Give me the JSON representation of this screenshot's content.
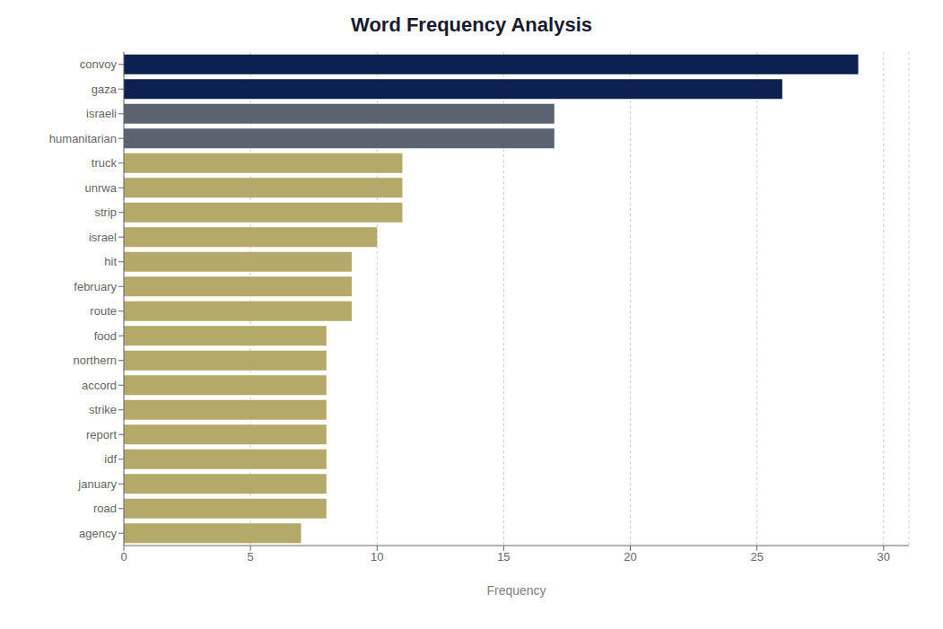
{
  "chart_data": {
    "type": "bar",
    "orientation": "horizontal",
    "title": "Word Frequency Analysis",
    "xlabel": "Frequency",
    "categories": [
      "convoy",
      "gaza",
      "israeli",
      "humanitarian",
      "truck",
      "unrwa",
      "strip",
      "israel",
      "hit",
      "february",
      "route",
      "food",
      "northern",
      "accord",
      "strike",
      "report",
      "idf",
      "january",
      "road",
      "agency"
    ],
    "values": [
      29,
      26,
      17,
      17,
      11,
      11,
      11,
      10,
      9,
      9,
      9,
      8,
      8,
      8,
      8,
      8,
      8,
      8,
      8,
      7
    ],
    "colors": [
      "#0d2150",
      "#0d2150",
      "#5c6370",
      "#5c6370",
      "#b5a96a",
      "#b5a96a",
      "#b5a96a",
      "#b5a96a",
      "#b5a96a",
      "#b5a96a",
      "#b5a96a",
      "#b5a96a",
      "#b5a96a",
      "#b5a96a",
      "#b5a96a",
      "#b5a96a",
      "#b5a96a",
      "#b5a96a",
      "#b5a96a",
      "#b5a96a"
    ],
    "xlim": [
      0,
      31
    ],
    "xticks": [
      0,
      5,
      10,
      15,
      20,
      25,
      30
    ],
    "grid": true
  }
}
